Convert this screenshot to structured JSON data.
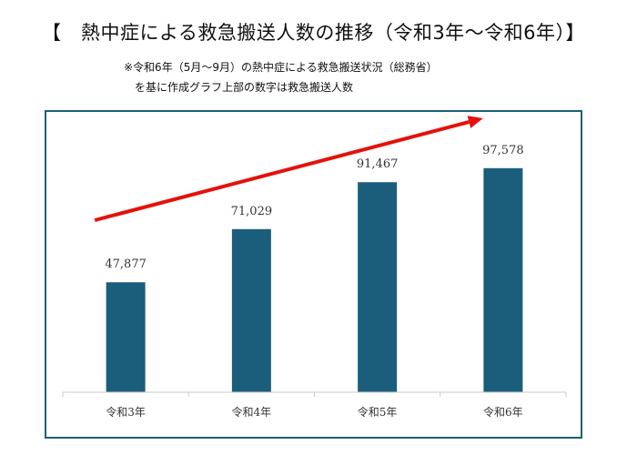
{
  "header": {
    "title": "【　熱中症による救急搬送人数の推移（令和3年～令和6年）】",
    "note_line1": "※令和6年（5月～9月）の熱中症による救急搬送状況（総務省）",
    "note_line2": "を基に作成グラフ上部の数字は救急搬送人数"
  },
  "chart_data": {
    "type": "bar",
    "title": "熱中症による救急搬送人数の推移（令和3年～令和6年）",
    "categories": [
      "令和3年",
      "令和4年",
      "令和5年",
      "令和6年"
    ],
    "values": [
      47877,
      71029,
      91467,
      97578
    ],
    "value_labels": [
      "47,877",
      "71,029",
      "91,467",
      "97,578"
    ],
    "xlabel": "",
    "ylabel": "",
    "ylim": [
      0,
      130000
    ],
    "grid": false,
    "legend": "none",
    "bar_color": "#1b5e7b",
    "trend_arrow_color": "#e3120b",
    "frame_color": "#1d5f78"
  }
}
